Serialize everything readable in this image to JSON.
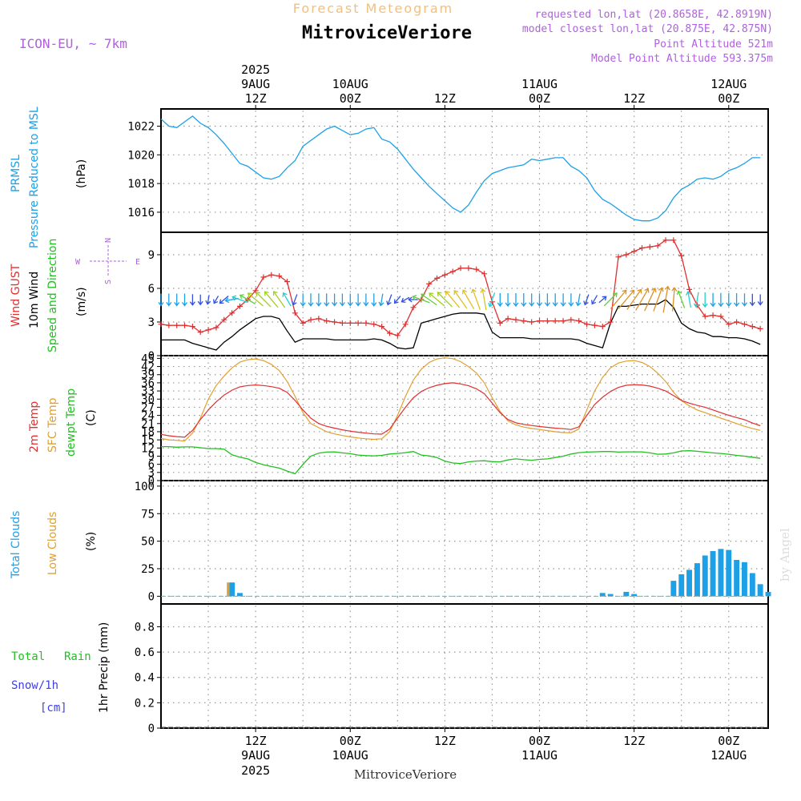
{
  "header": {
    "product": "Forecast Meteogram",
    "location": "MitroviceVeriore",
    "model": "ICON-EU, ~ 7km",
    "requested": "requested lon,lat (20.8658E, 42.8919N)",
    "closest": "model closest lon,lat (20.875E, 42.875N)",
    "point_altitude": "Point Altitude 521m",
    "model_altitude": "Model Point Altitude 593.375m",
    "footer_location": "MitroviceVeriore",
    "watermark": "by Angel"
  },
  "time_axis": {
    "top_labels": [
      {
        "line1": "2025",
        "line2": "9AUG",
        "line3": "12Z",
        "hour": 12
      },
      {
        "line1": "",
        "line2": "10AUG",
        "line3": "00Z",
        "hour": 24
      },
      {
        "line1": "",
        "line2": "",
        "line3": "12Z",
        "hour": 36
      },
      {
        "line1": "",
        "line2": "11AUG",
        "line3": "00Z",
        "hour": 48
      },
      {
        "line1": "",
        "line2": "",
        "line3": "12Z",
        "hour": 60
      },
      {
        "line1": "",
        "line2": "12AUG",
        "line3": "00Z",
        "hour": 72
      }
    ],
    "bottom_labels": [
      {
        "line1": "12Z",
        "line2": "9AUG",
        "line3": "2025",
        "hour": 12
      },
      {
        "line1": "00Z",
        "line2": "10AUG",
        "line3": "",
        "hour": 24
      },
      {
        "line1": "12Z",
        "line2": "",
        "line3": "",
        "hour": 36
      },
      {
        "line1": "00Z",
        "line2": "11AUG",
        "line3": "",
        "hour": 48
      },
      {
        "line1": "12Z",
        "line2": "",
        "line3": "",
        "hour": 60
      },
      {
        "line1": "00Z",
        "line2": "12AUG",
        "line3": "",
        "hour": 72
      }
    ],
    "range_hours": [
      0,
      77
    ]
  },
  "colors": {
    "pressure": "#1ea0e6",
    "gust": "#e03030",
    "wind": "#000000",
    "temp2m": "#e03030",
    "sfctemp": "#e0a030",
    "dewpt": "#20c020",
    "total_clouds": "#1ea0e6",
    "low_clouds": "#e0a030",
    "rain": "#20c020",
    "snow": "#4040e0",
    "header_purple": "#b060e0",
    "header_orange": "#f0c080"
  },
  "panels": {
    "pressure": {
      "label1": "PRMSL",
      "label2": "Pressure Reduced to MSL",
      "unit": "(hPa)"
    },
    "wind": {
      "label_gust": "Wind GUST",
      "label_10m": "10m Wind",
      "label_speed": "Speed and Direction",
      "unit": "(m/s)",
      "compass_n": "N",
      "compass_w": "W",
      "compass_e": "E",
      "compass_s": "S"
    },
    "temp": {
      "label_2m": "2m Temp",
      "label_sfc": "SFC Temp",
      "label_dew": "dewpt Temp",
      "unit": "(C)"
    },
    "clouds": {
      "label_total": "Total Clouds",
      "label_low": "Low Clouds",
      "unit": "(%)"
    },
    "precip": {
      "label_rain1": "Total",
      "label_rain2": "Rain",
      "label_snow": "Snow/1h",
      "label_cm": "[cm]",
      "unit": "1hr Precip (mm)"
    }
  },
  "chart_data": [
    {
      "type": "line",
      "name": "PRMSL",
      "ylim": [
        1014.6,
        1023.2
      ],
      "yticks": [
        1016,
        1018,
        1020,
        1022
      ],
      "x": [
        0,
        1,
        2,
        3,
        4,
        5,
        6,
        7,
        8,
        9,
        10,
        11,
        12,
        13,
        14,
        15,
        16,
        17,
        18,
        19,
        20,
        21,
        22,
        23,
        24,
        25,
        26,
        27,
        28,
        29,
        30,
        31,
        32,
        33,
        34,
        35,
        36,
        37,
        38,
        39,
        40,
        41,
        42,
        43,
        44,
        45,
        46,
        47,
        48,
        49,
        50,
        51,
        52,
        53,
        54,
        55,
        56,
        57,
        58,
        59,
        60,
        61,
        62,
        63,
        64,
        65,
        66,
        67,
        68,
        69,
        70,
        71,
        72,
        73,
        74,
        75,
        76
      ],
      "values": [
        1022.5,
        1022.0,
        1021.9,
        1022.3,
        1022.7,
        1022.2,
        1021.9,
        1021.4,
        1020.8,
        1020.1,
        1019.4,
        1019.2,
        1018.8,
        1018.4,
        1018.3,
        1018.5,
        1019.1,
        1019.6,
        1020.6,
        1021.0,
        1021.4,
        1021.8,
        1022.0,
        1021.7,
        1021.4,
        1021.5,
        1021.8,
        1021.9,
        1021.1,
        1020.9,
        1020.4,
        1019.7,
        1019.0,
        1018.4,
        1017.8,
        1017.3,
        1016.8,
        1016.3,
        1016.0,
        1016.5,
        1017.4,
        1018.2,
        1018.7,
        1018.9,
        1019.1,
        1019.2,
        1019.3,
        1019.7,
        1019.6,
        1019.7,
        1019.8,
        1019.8,
        1019.2,
        1018.9,
        1018.4,
        1017.5,
        1016.9,
        1016.6,
        1016.2,
        1015.8,
        1015.5,
        1015.4,
        1015.4,
        1015.6,
        1016.1,
        1017.0,
        1017.6,
        1017.9,
        1018.3,
        1018.4,
        1018.3,
        1018.5,
        1018.9,
        1019.1,
        1019.4,
        1019.8,
        1019.8
      ]
    },
    {
      "type": "line",
      "name": "Wind",
      "ylim": [
        0,
        11
      ],
      "yticks": [
        0,
        3,
        6,
        9
      ],
      "x": [
        0,
        1,
        2,
        3,
        4,
        5,
        6,
        7,
        8,
        9,
        10,
        11,
        12,
        13,
        14,
        15,
        16,
        17,
        18,
        19,
        20,
        21,
        22,
        23,
        24,
        25,
        26,
        27,
        28,
        29,
        30,
        31,
        32,
        33,
        34,
        35,
        36,
        37,
        38,
        39,
        40,
        41,
        42,
        43,
        44,
        45,
        46,
        47,
        48,
        49,
        50,
        51,
        52,
        53,
        54,
        55,
        56,
        57,
        58,
        59,
        60,
        61,
        62,
        63,
        64,
        65,
        66,
        67,
        68,
        69,
        70,
        71,
        72,
        73,
        74,
        75,
        76
      ],
      "gust": [
        2.8,
        2.7,
        2.7,
        2.7,
        2.6,
        2.1,
        2.3,
        2.5,
        3.2,
        3.8,
        4.4,
        5.0,
        5.8,
        7.0,
        7.2,
        7.1,
        6.6,
        3.8,
        2.9,
        3.2,
        3.3,
        3.1,
        3.0,
        2.9,
        2.9,
        2.9,
        2.9,
        2.8,
        2.6,
        2.0,
        1.8,
        2.8,
        4.3,
        5.0,
        6.4,
        6.9,
        7.2,
        7.5,
        7.8,
        7.8,
        7.7,
        7.3,
        4.8,
        2.9,
        3.3,
        3.2,
        3.1,
        3.0,
        3.1,
        3.1,
        3.1,
        3.1,
        3.2,
        3.1,
        2.8,
        2.7,
        2.6,
        3.0,
        8.8,
        9.0,
        9.3,
        9.6,
        9.7,
        9.8,
        10.3,
        10.3,
        8.9,
        5.9,
        4.5,
        3.5,
        3.6,
        3.5,
        2.8,
        3.0,
        2.8,
        2.6,
        2.4
      ],
      "wind": [
        1.4,
        1.4,
        1.4,
        1.4,
        1.1,
        0.9,
        0.7,
        0.5,
        1.2,
        1.7,
        2.3,
        2.8,
        3.3,
        3.5,
        3.5,
        3.3,
        2.2,
        1.2,
        1.5,
        1.5,
        1.5,
        1.5,
        1.4,
        1.4,
        1.4,
        1.4,
        1.4,
        1.5,
        1.4,
        1.1,
        0.7,
        0.6,
        0.7,
        2.9,
        3.1,
        3.3,
        3.5,
        3.7,
        3.8,
        3.8,
        3.8,
        3.7,
        2.1,
        1.6,
        1.6,
        1.6,
        1.6,
        1.5,
        1.5,
        1.5,
        1.5,
        1.5,
        1.5,
        1.4,
        1.1,
        0.9,
        0.7,
        2.9,
        4.4,
        4.4,
        4.5,
        4.6,
        4.6,
        4.6,
        5.0,
        4.3,
        2.9,
        2.4,
        2.1,
        2.0,
        1.7,
        1.7,
        1.6,
        1.6,
        1.5,
        1.3,
        1.0
      ],
      "arrow_dir_deg": [
        0,
        0,
        0,
        0,
        0,
        0,
        10,
        30,
        50,
        80,
        110,
        120,
        130,
        135,
        140,
        145,
        150,
        20,
        0,
        0,
        0,
        0,
        0,
        0,
        0,
        0,
        0,
        0,
        10,
        20,
        40,
        60,
        90,
        110,
        125,
        130,
        135,
        140,
        145,
        150,
        160,
        170,
        20,
        0,
        0,
        0,
        0,
        0,
        0,
        0,
        0,
        0,
        0,
        10,
        20,
        30,
        -130,
        -135,
        -140,
        -140,
        -145,
        -150,
        -155,
        -160,
        -170,
        -175,
        -200,
        -190,
        10,
        0,
        0,
        0,
        0,
        0,
        0,
        0,
        0
      ]
    },
    {
      "type": "line",
      "name": "Temperature",
      "ylim": [
        0,
        46
      ],
      "yticks": [
        0,
        3,
        6,
        9,
        12,
        15,
        18,
        21,
        24,
        27,
        30,
        33,
        36,
        39,
        42,
        45
      ],
      "x": [
        0,
        1,
        2,
        3,
        4,
        5,
        6,
        7,
        8,
        9,
        10,
        11,
        12,
        13,
        14,
        15,
        16,
        17,
        18,
        19,
        20,
        21,
        22,
        23,
        24,
        25,
        26,
        27,
        28,
        29,
        30,
        31,
        32,
        33,
        34,
        35,
        36,
        37,
        38,
        39,
        40,
        41,
        42,
        43,
        44,
        45,
        46,
        47,
        48,
        49,
        50,
        51,
        52,
        53,
        54,
        55,
        56,
        57,
        58,
        59,
        60,
        61,
        62,
        63,
        64,
        65,
        66,
        67,
        68,
        69,
        70,
        71,
        72,
        73,
        74,
        75,
        76
      ],
      "temp2m": [
        17.0,
        16.5,
        16.2,
        16.0,
        18.5,
        22.5,
        26.0,
        29.0,
        31.5,
        33.3,
        34.5,
        35.0,
        35.2,
        35.0,
        34.6,
        34.0,
        32.5,
        29.5,
        26.0,
        23.0,
        21.0,
        20.0,
        19.3,
        18.7,
        18.2,
        17.8,
        17.5,
        17.2,
        17.1,
        19.0,
        23.0,
        27.0,
        30.5,
        32.8,
        34.2,
        35.1,
        35.7,
        36.0,
        35.6,
        34.9,
        33.8,
        32.0,
        28.5,
        25.0,
        22.5,
        21.3,
        20.7,
        20.3,
        19.9,
        19.6,
        19.3,
        19.1,
        18.8,
        19.8,
        24.0,
        28.0,
        30.7,
        32.8,
        34.3,
        35.1,
        35.3,
        35.2,
        34.8,
        34.0,
        33.0,
        31.3,
        29.5,
        28.5,
        27.7,
        27.0,
        26.0,
        25.0,
        24.0,
        23.2,
        22.4,
        21.2,
        20.2
      ],
      "sfctemp": [
        15.5,
        15.0,
        14.8,
        14.6,
        17.5,
        23.0,
        30.0,
        35.0,
        38.5,
        41.5,
        43.6,
        44.5,
        44.8,
        44.2,
        42.8,
        40.5,
        36.5,
        31.0,
        25.0,
        21.0,
        19.5,
        18.0,
        17.2,
        16.6,
        16.1,
        15.7,
        15.4,
        15.2,
        15.4,
        18.0,
        24.0,
        31.0,
        37.0,
        41.0,
        43.5,
        44.8,
        45.2,
        44.9,
        43.8,
        42.0,
        39.6,
        36.0,
        30.5,
        25.5,
        22.0,
        20.5,
        19.7,
        19.2,
        18.8,
        18.4,
        18.0,
        17.7,
        17.6,
        19.0,
        26.0,
        33.0,
        38.0,
        41.5,
        43.3,
        44.0,
        44.2,
        43.5,
        42.0,
        39.5,
        36.5,
        32.5,
        29.5,
        27.5,
        26.0,
        25.0,
        24.0,
        23.0,
        22.0,
        21.0,
        20.0,
        19.2,
        18.5
      ],
      "dewpt": [
        12.5,
        12.5,
        12.3,
        12.4,
        12.4,
        12.1,
        11.8,
        11.8,
        11.6,
        9.5,
        8.6,
        8.0,
        6.7,
        5.8,
        5.2,
        4.6,
        3.5,
        2.5,
        6.0,
        9.0,
        10.1,
        10.5,
        10.6,
        10.2,
        9.9,
        9.4,
        9.2,
        9.1,
        9.3,
        9.8,
        10.0,
        10.3,
        10.7,
        9.4,
        9.1,
        8.5,
        7.2,
        6.5,
        6.3,
        6.9,
        7.2,
        7.3,
        7.0,
        6.9,
        7.6,
        8.0,
        7.7,
        7.5,
        7.8,
        8.0,
        8.5,
        9.0,
        9.8,
        10.3,
        10.5,
        10.6,
        10.7,
        10.7,
        10.5,
        10.6,
        10.6,
        10.6,
        10.2,
        9.7,
        9.8,
        10.2,
        10.9,
        11.0,
        10.8,
        10.5,
        10.2,
        10.0,
        9.7,
        9.3,
        9.0,
        8.6,
        8.2
      ]
    },
    {
      "type": "bar",
      "name": "Clouds",
      "ylim": [
        -7,
        105
      ],
      "yticks": [
        0,
        25,
        50,
        75,
        100
      ],
      "total_clouds": [
        {
          "hour": 9,
          "value": 12.5
        },
        {
          "hour": 10,
          "value": 3
        },
        {
          "hour": 56,
          "value": 3
        },
        {
          "hour": 57,
          "value": 2
        },
        {
          "hour": 59,
          "value": 4
        },
        {
          "hour": 60,
          "value": 2
        },
        {
          "hour": 65,
          "value": 14
        },
        {
          "hour": 66,
          "value": 20
        },
        {
          "hour": 67,
          "value": 24
        },
        {
          "hour": 68,
          "value": 30
        },
        {
          "hour": 69,
          "value": 37
        },
        {
          "hour": 70,
          "value": 41
        },
        {
          "hour": 71,
          "value": 43
        },
        {
          "hour": 72,
          "value": 42
        },
        {
          "hour": 73,
          "value": 33
        },
        {
          "hour": 74,
          "value": 31
        },
        {
          "hour": 75,
          "value": 21
        },
        {
          "hour": 76,
          "value": 11
        },
        {
          "hour": 77,
          "value": 4
        }
      ],
      "low_clouds": [
        {
          "hour": 8.8,
          "value": 12.5
        }
      ]
    },
    {
      "type": "line",
      "name": "Precipitation",
      "ylim": [
        0,
        0.98
      ],
      "yticks": [
        0,
        0.2,
        0.4,
        0.6,
        0.8
      ],
      "values": []
    }
  ]
}
